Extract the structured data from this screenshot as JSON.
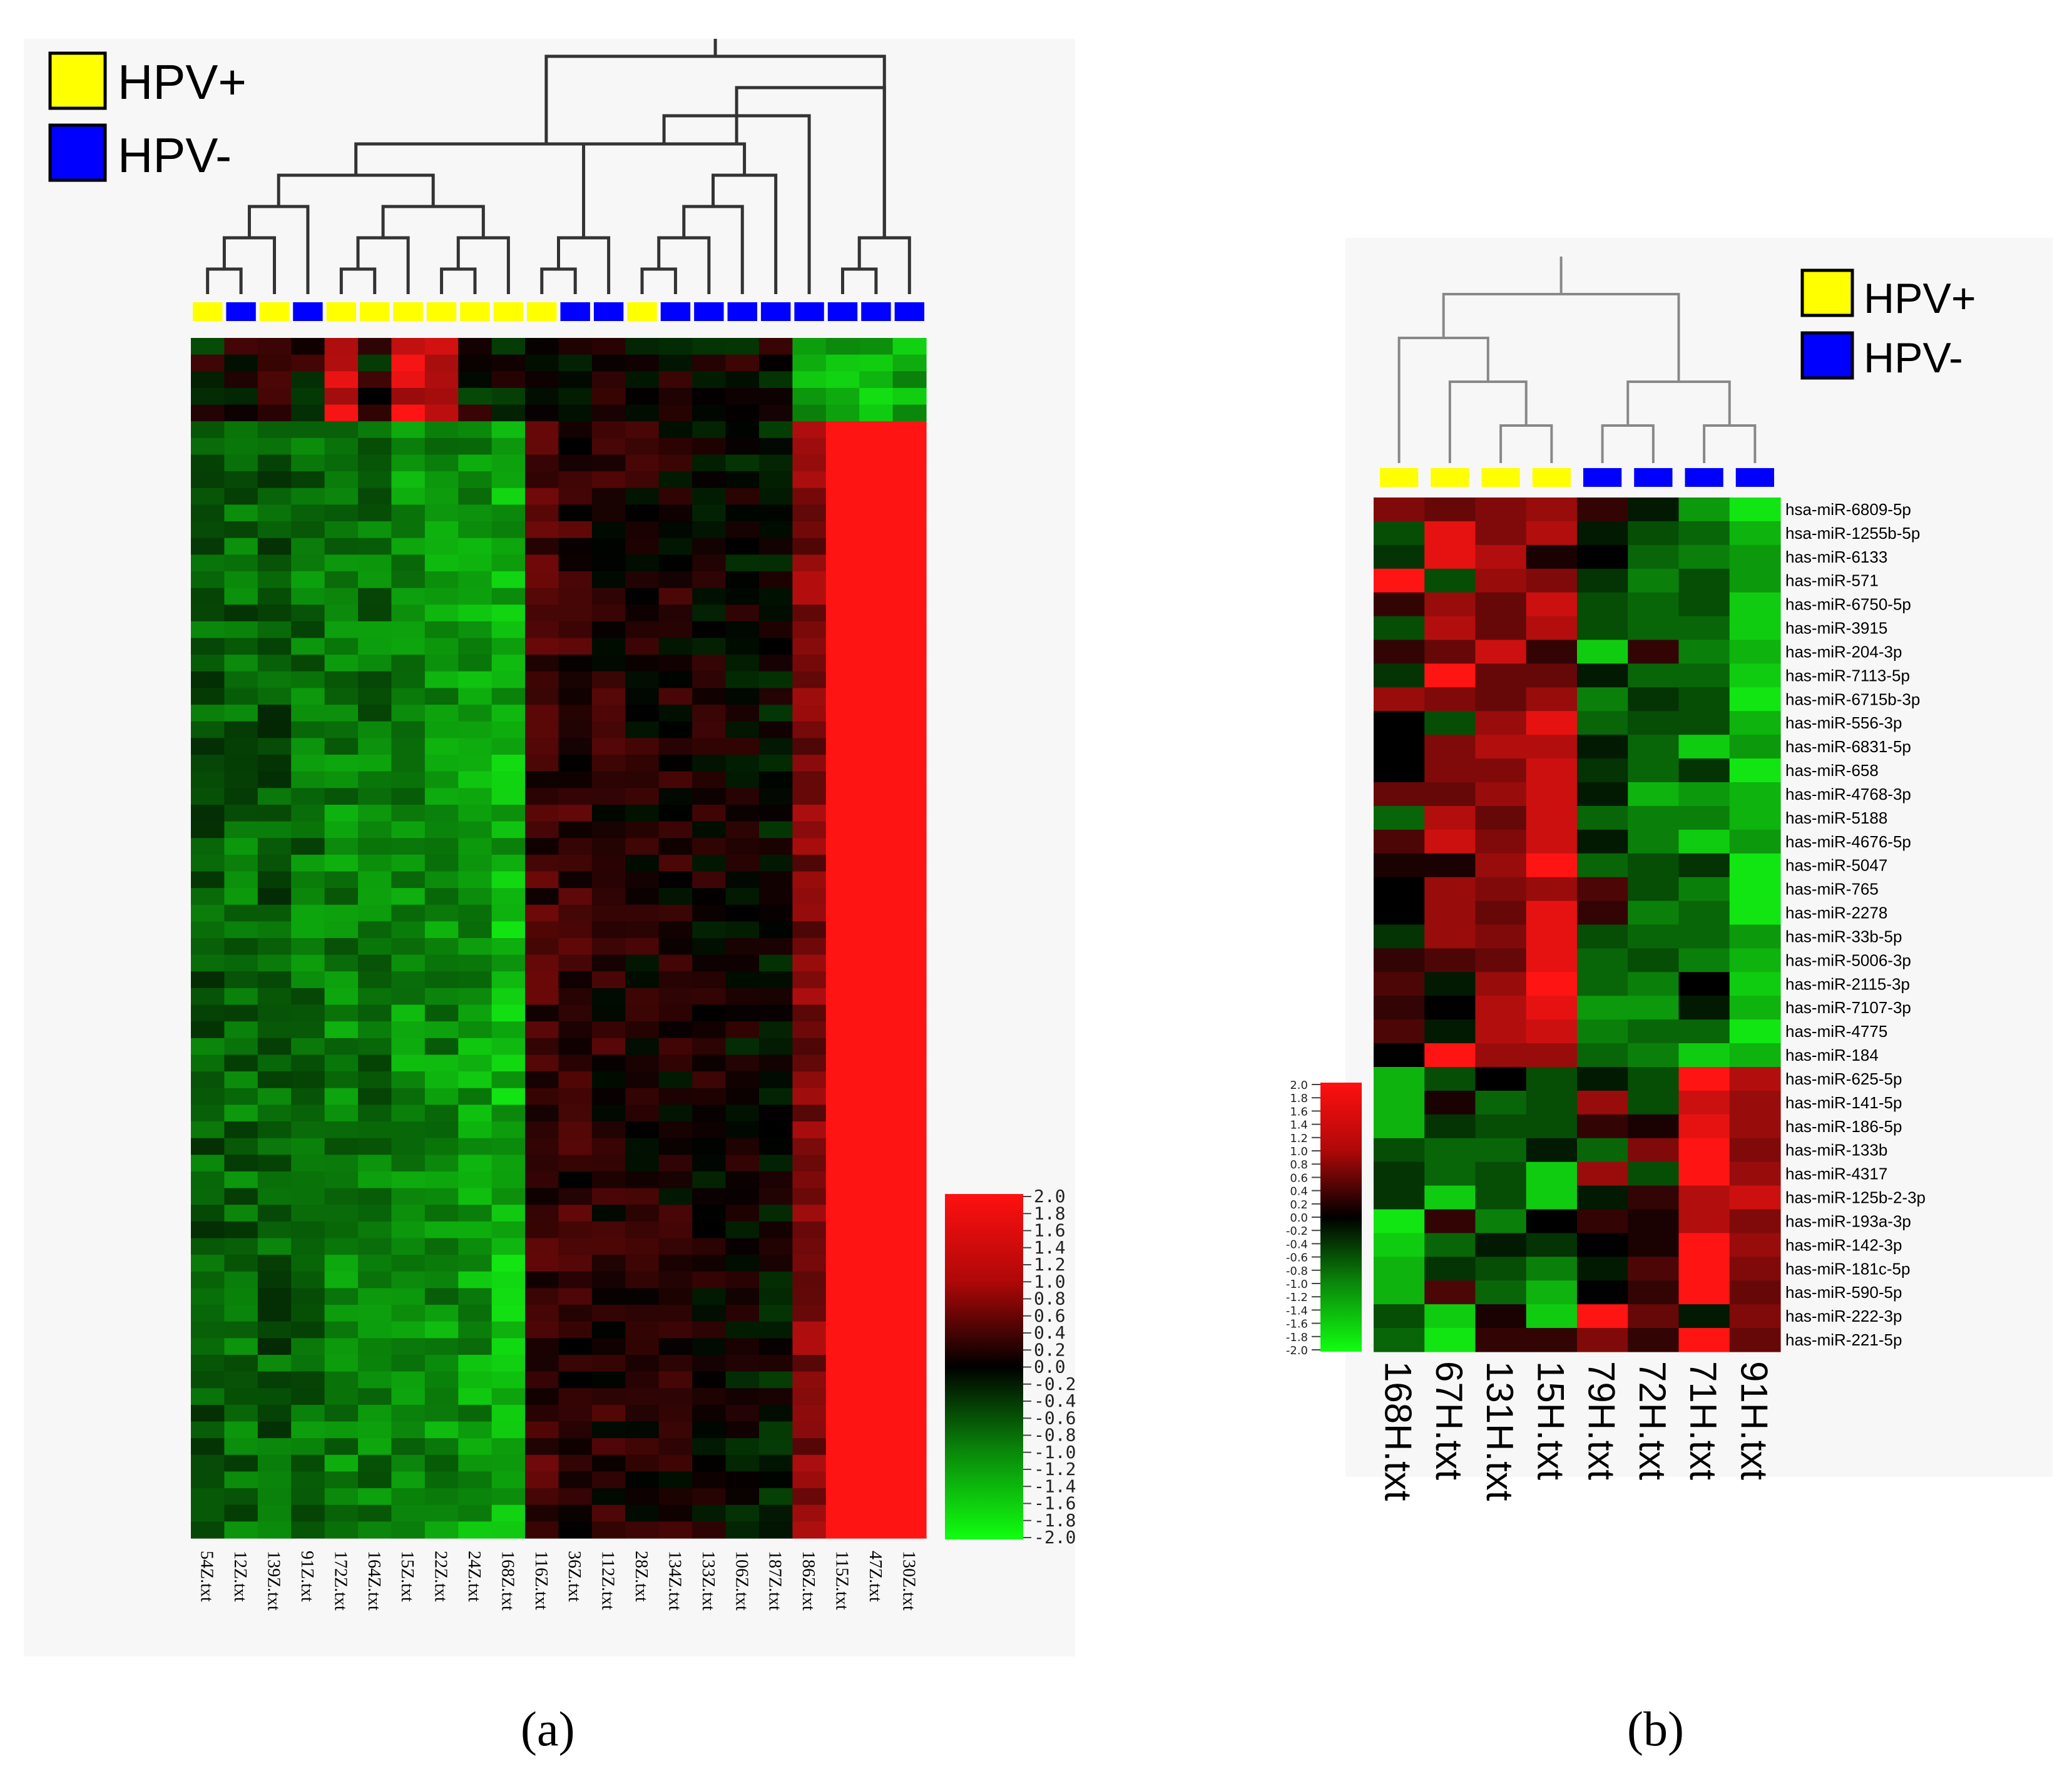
{
  "legend": {
    "hpv_pos_label": "HPV+",
    "hpv_neg_label": "HPV-",
    "hpv_pos_color": "#ffff00",
    "hpv_neg_color": "#0000ff"
  },
  "colors": {
    "high": "#ff1a1a",
    "mid": "#000000",
    "low": "#1aff1a",
    "bar_low": "#00ff00",
    "bar_high": "#ff0000"
  },
  "captions": {
    "a": "(a)",
    "b": "(b)"
  },
  "chart_data": [
    {
      "type": "heatmap",
      "panel": "a",
      "title": "",
      "clustering": "hierarchical (column dendrogram)",
      "rows_estimated": 72,
      "columns": [
        "54Z.txt",
        "12Z.txt",
        "139Z.txt",
        "91Z.txt",
        "172Z.txt",
        "164Z.txt",
        "15Z.txt",
        "22Z.txt",
        "24Z.txt",
        "168Z.txt",
        "116Z.txt",
        "36Z.txt",
        "112Z.txt",
        "28Z.txt",
        "134Z.txt",
        "133Z.txt",
        "106Z.txt",
        "187Z.txt",
        "186Z.txt",
        "115Z.txt",
        "47Z.txt",
        "130Z.txt"
      ],
      "groups": [
        "HPV+",
        "HPV-",
        "HPV+",
        "HPV-",
        "HPV+",
        "HPV+",
        "HPV+",
        "HPV+",
        "HPV+",
        "HPV+",
        "HPV+",
        "HPV-",
        "HPV-",
        "HPV+",
        "HPV-",
        "HPV-",
        "HPV-",
        "HPV-",
        "HPV-",
        "HPV-",
        "HPV-",
        "HPV-"
      ],
      "column_mean_values": [
        -0.7,
        -0.8,
        -0.7,
        -0.9,
        -1.0,
        -0.9,
        -1.1,
        -1.1,
        -1.2,
        -1.4,
        0.5,
        0.4,
        0.3,
        0.2,
        0.2,
        0.1,
        0.0,
        -0.1,
        1.0,
        2.0,
        2.0,
        2.0
      ],
      "color_scale": {
        "min": -2.0,
        "max": 2.0,
        "ticks": [
          "2.0",
          "1.8",
          "1.6",
          "1.4",
          "1.2",
          "1.0",
          "0.8",
          "0.6",
          "0.4",
          "0.2",
          "0.0",
          "-0.2",
          "-0.4",
          "-0.6",
          "-0.8",
          "-1.0",
          "-1.2",
          "-1.4",
          "-1.6",
          "-1.8",
          "-2.0"
        ]
      }
    },
    {
      "type": "heatmap",
      "panel": "b",
      "title": "",
      "clustering": "hierarchical (column dendrogram)",
      "columns": [
        "168H.txt",
        "67H.txt",
        "131H.txt",
        "15H.txt",
        "79H.txt",
        "72H.txt",
        "71H.txt",
        "91H.txt"
      ],
      "groups": [
        "HPV+",
        "HPV+",
        "HPV+",
        "HPV+",
        "HPV-",
        "HPV-",
        "HPV-",
        "HPV-"
      ],
      "rows": [
        "hsa-miR-6809-5p",
        "hsa-miR-1255b-5p",
        "has-miR-6133",
        "has-miR-571",
        "has-miR-6750-5p",
        "has-miR-3915",
        "has-miR-204-3p",
        "has-miR-7113-5p",
        "has-miR-6715b-3p",
        "has-miR-556-3p",
        "has-miR-6831-5p",
        "has-miR-658",
        "has-miR-4768-3p",
        "has-miR-5188",
        "has-miR-4676-5p",
        "has-miR-5047",
        "has-miR-765",
        "has-miR-2278",
        "has-miR-33b-5p",
        "has-miR-5006-3p",
        "has-miR-2115-3p",
        "has-miR-7107-3p",
        "has-miR-4775",
        "has-miR-184",
        "has-miR-625-5p",
        "has-miR-141-5p",
        "has-miR-186-5p",
        "has-miR-133b",
        "has-miR-4317",
        "has-miR-125b-2-3p",
        "has-miR-193a-3p",
        "has-miR-142-3p",
        "has-miR-181c-5p",
        "has-miR-590-5p",
        "has-miR-222-3p",
        "has-miR-221-5p"
      ],
      "values": [
        [
          1.0,
          0.8,
          1.0,
          1.2,
          0.4,
          -0.2,
          -1.2,
          -1.8
        ],
        [
          -0.6,
          1.8,
          1.0,
          1.4,
          -0.2,
          -0.6,
          -0.8,
          -1.4
        ],
        [
          -0.4,
          1.8,
          1.4,
          0.2,
          0.0,
          -0.8,
          -1.0,
          -1.2
        ],
        [
          2.0,
          -0.6,
          1.2,
          1.0,
          -0.4,
          -1.0,
          -0.6,
          -1.2
        ],
        [
          0.4,
          1.2,
          0.8,
          1.6,
          -0.6,
          -0.8,
          -0.6,
          -1.6
        ],
        [
          -0.6,
          1.4,
          0.8,
          1.4,
          -0.6,
          -0.8,
          -0.8,
          -1.6
        ],
        [
          0.4,
          0.8,
          1.6,
          0.4,
          -1.6,
          0.4,
          -1.0,
          -1.4
        ],
        [
          -0.4,
          2.0,
          0.8,
          0.8,
          -0.2,
          -0.8,
          -0.8,
          -1.6
        ],
        [
          1.2,
          1.0,
          0.8,
          1.2,
          -1.0,
          -0.4,
          -0.6,
          -1.8
        ],
        [
          0.0,
          -0.6,
          1.2,
          1.8,
          -0.8,
          -0.6,
          -0.6,
          -1.4
        ],
        [
          0.0,
          1.0,
          1.4,
          1.4,
          -0.2,
          -0.8,
          -1.6,
          -1.2
        ],
        [
          0.0,
          1.0,
          1.0,
          1.6,
          -0.4,
          -0.8,
          -0.4,
          -1.8
        ],
        [
          0.8,
          0.8,
          1.2,
          1.6,
          -0.2,
          -1.4,
          -1.2,
          -1.4
        ],
        [
          -0.8,
          1.4,
          0.8,
          1.6,
          -0.8,
          -1.0,
          -1.0,
          -1.4
        ],
        [
          0.6,
          1.6,
          1.0,
          1.6,
          -0.2,
          -1.0,
          -1.6,
          -1.2
        ],
        [
          0.2,
          0.2,
          1.2,
          2.0,
          -0.8,
          -0.6,
          -0.4,
          -1.8
        ],
        [
          0.0,
          1.2,
          1.0,
          1.2,
          0.6,
          -0.6,
          -1.0,
          -1.8
        ],
        [
          0.0,
          1.2,
          0.8,
          1.8,
          0.4,
          -1.0,
          -0.8,
          -1.8
        ],
        [
          -0.4,
          1.2,
          1.0,
          1.8,
          -0.6,
          -0.8,
          -0.8,
          -1.2
        ],
        [
          0.4,
          0.6,
          0.8,
          1.8,
          -0.8,
          -0.6,
          -1.0,
          -1.4
        ],
        [
          0.6,
          -0.2,
          1.2,
          2.0,
          -0.8,
          -1.0,
          0.0,
          -1.6
        ],
        [
          0.4,
          0.0,
          1.4,
          1.8,
          -1.2,
          -1.2,
          -0.2,
          -1.4
        ],
        [
          0.6,
          -0.2,
          1.4,
          1.6,
          -1.0,
          -0.8,
          -0.8,
          -1.8
        ],
        [
          0.0,
          2.0,
          1.2,
          1.2,
          -0.8,
          -1.0,
          -1.6,
          -1.4
        ],
        [
          -1.4,
          -0.6,
          0.0,
          -0.6,
          -0.2,
          -0.6,
          2.0,
          1.4
        ],
        [
          -1.4,
          0.2,
          -0.8,
          -0.6,
          1.2,
          -0.6,
          1.6,
          1.2
        ],
        [
          -1.4,
          -0.4,
          -0.6,
          -0.6,
          0.4,
          0.2,
          1.8,
          1.2
        ],
        [
          -0.6,
          -0.8,
          -0.8,
          -0.2,
          -0.8,
          1.0,
          2.0,
          1.0
        ],
        [
          -0.4,
          -0.8,
          -0.6,
          -1.6,
          1.2,
          -0.6,
          2.0,
          1.2
        ],
        [
          -0.4,
          -1.6,
          -0.6,
          -1.6,
          -0.2,
          0.4,
          1.4,
          1.6
        ],
        [
          -1.8,
          0.4,
          -1.0,
          0.0,
          0.4,
          0.2,
          1.4,
          1.0
        ],
        [
          -1.6,
          -0.8,
          -0.2,
          -0.4,
          0.0,
          0.2,
          2.0,
          1.2
        ],
        [
          -1.4,
          -0.4,
          -0.6,
          -1.0,
          -0.2,
          0.6,
          2.0,
          1.0
        ],
        [
          -1.4,
          0.6,
          -0.8,
          -1.4,
          0.0,
          0.4,
          2.0,
          0.8
        ],
        [
          -0.6,
          -1.6,
          0.2,
          -1.6,
          2.0,
          0.8,
          -0.2,
          1.0
        ],
        [
          -0.8,
          -1.8,
          0.4,
          0.4,
          1.0,
          0.4,
          2.0,
          0.8
        ]
      ],
      "color_scale": {
        "min": -2.0,
        "max": 2.0,
        "ticks": [
          "2.0",
          "1.8",
          "1.6",
          "1.4",
          "1.2",
          "1.0",
          "0.8",
          "0.6",
          "0.4",
          "0.2",
          "0.0",
          "-0.2",
          "-0.4",
          "-0.6",
          "-0.8",
          "-1.0",
          "-1.2",
          "-1.4",
          "-1.6",
          "-1.8",
          "-2.0"
        ]
      }
    }
  ]
}
